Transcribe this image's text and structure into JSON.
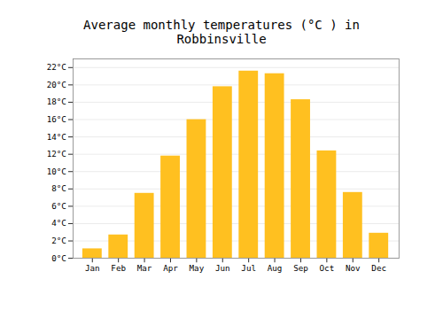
{
  "chart_data": {
    "type": "bar",
    "title": "Average monthly temperatures (°C ) in Robbinsville",
    "categories": [
      "Jan",
      "Feb",
      "Mar",
      "Apr",
      "May",
      "Jun",
      "Jul",
      "Aug",
      "Sep",
      "Oct",
      "Nov",
      "Dec"
    ],
    "values": [
      1.1,
      2.7,
      7.5,
      11.8,
      16.0,
      19.8,
      21.6,
      21.3,
      18.3,
      12.4,
      7.6,
      2.9
    ],
    "color": "#FFC020",
    "ylim": [
      0,
      23
    ],
    "yticks": [
      {
        "value": 0,
        "label": "0°C"
      },
      {
        "value": 2,
        "label": "2°C"
      },
      {
        "value": 4,
        "label": "4°C"
      },
      {
        "value": 6,
        "label": "6°C"
      },
      {
        "value": 8,
        "label": "8°C"
      },
      {
        "value": 10,
        "label": "10°C"
      },
      {
        "value": 12,
        "label": "12°C"
      },
      {
        "value": 14,
        "label": "14°C"
      },
      {
        "value": 16,
        "label": "16°C"
      },
      {
        "value": 18,
        "label": "18°C"
      },
      {
        "value": 20,
        "label": "20°C"
      },
      {
        "value": 22,
        "label": "22°C"
      }
    ],
    "grid": true
  }
}
